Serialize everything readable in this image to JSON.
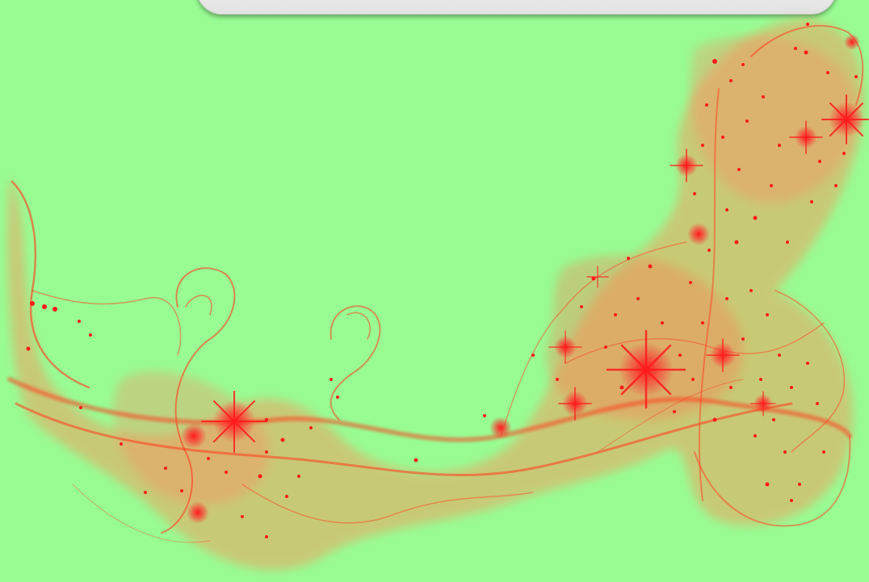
{
  "scene": {
    "background_color": "#98fc93",
    "artwork": {
      "subject": "smoke-swirl-with-sparkles",
      "smoke_color": "#ff3b1f",
      "sparkle_color": "#ff1a1a"
    },
    "top_panel": {
      "color": "#eeeeee"
    }
  }
}
